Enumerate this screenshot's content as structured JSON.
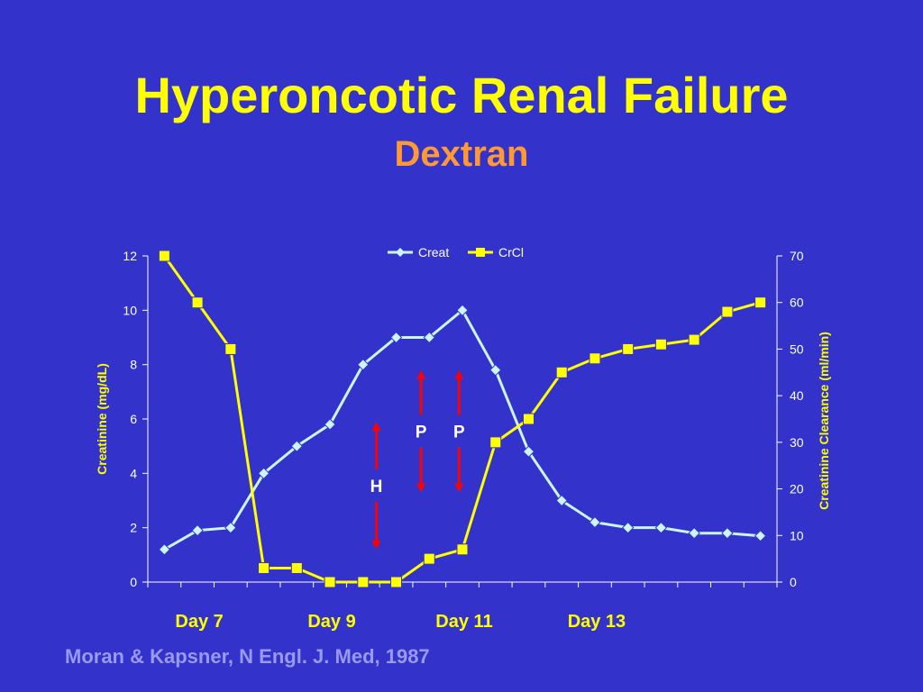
{
  "slide": {
    "title": "Hyperoncotic Renal Failure",
    "subtitle": "Dextran",
    "citation": "Moran & Kapsner, N Engl. J. Med, 1987"
  },
  "colors": {
    "background": "#3333cc",
    "creat": "#ccf5ff",
    "crcl": "#ffff00",
    "arrow": "#ff0000",
    "axis_text": "#ffffff"
  },
  "chart_data": {
    "type": "line",
    "x": [
      1,
      2,
      3,
      4,
      5,
      6,
      7,
      8,
      9,
      10,
      11,
      12,
      13,
      14,
      15,
      16,
      17,
      18,
      19
    ],
    "day_labels": [
      {
        "x": 2,
        "label": "Day 7"
      },
      {
        "x": 6,
        "label": "Day 9"
      },
      {
        "x": 10,
        "label": "Day 11"
      },
      {
        "x": 14,
        "label": "Day 13"
      }
    ],
    "series": [
      {
        "name": "Creat",
        "axis": "left",
        "marker": "diamond",
        "values": [
          1.2,
          1.9,
          2.0,
          4.0,
          5.0,
          5.8,
          8.0,
          9.0,
          9.0,
          10.0,
          7.8,
          4.8,
          3.0,
          2.2,
          2.0,
          2.0,
          1.8,
          1.8,
          1.7
        ]
      },
      {
        "name": "CrCl",
        "axis": "right",
        "marker": "square",
        "values": [
          70,
          60,
          50,
          3,
          3,
          0,
          0,
          0,
          5,
          7,
          30,
          35,
          45,
          48,
          50,
          51,
          52,
          58,
          60
        ]
      }
    ],
    "left_axis": {
      "label": "Creatinine (mg/dL)",
      "ylim": [
        0,
        12
      ],
      "ticks": [
        0,
        2,
        4,
        6,
        8,
        10,
        12
      ]
    },
    "right_axis": {
      "label": "Creatinine Clearance (ml/min)",
      "ylim": [
        0,
        70
      ],
      "ticks": [
        0,
        10,
        20,
        30,
        40,
        50,
        60,
        70
      ]
    },
    "annotations": [
      {
        "label": "H",
        "x": 7.4,
        "arrow_from": 5.9,
        "arrow_to": 1.2
      },
      {
        "label": "P",
        "x": 8.75,
        "arrow_from": 7.8,
        "arrow_to": 3.3
      },
      {
        "label": "P",
        "x": 9.9,
        "arrow_from": 7.8,
        "arrow_to": 3.3
      }
    ],
    "legend_position": "top-center",
    "grid": false
  }
}
